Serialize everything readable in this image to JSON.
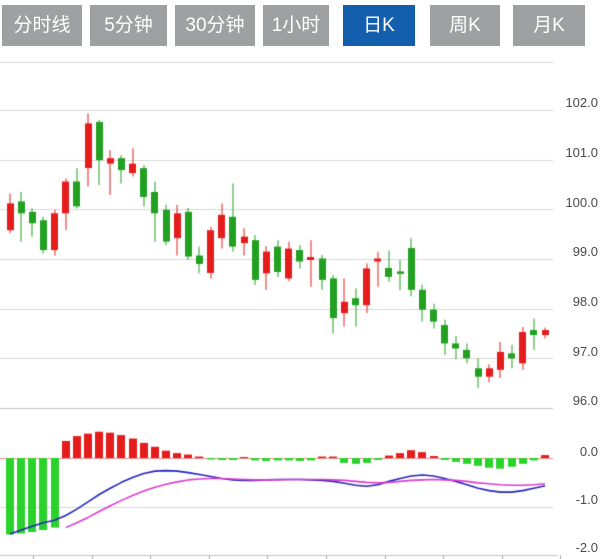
{
  "tabs": [
    {
      "label": "分时线",
      "active": false
    },
    {
      "label": "5分钟",
      "active": false
    },
    {
      "label": "30分钟",
      "active": false
    },
    {
      "label": "1小时",
      "active": false
    },
    {
      "label": "日K",
      "active": true
    },
    {
      "label": "周K",
      "active": false
    },
    {
      "label": "月K",
      "active": false
    }
  ],
  "colors": {
    "up": "#E51C1C",
    "down": "#21A021",
    "macd_up": "#E51C1C",
    "macd_down": "#2BD22B",
    "dif_line": "#2626BE",
    "dea_line": "#DC3CD0",
    "zero_line": "#E89090",
    "grid": "#D9D9D9",
    "grid_dark": "#C4C4C4",
    "axis_text": "#4a4a4a",
    "tab_bg": "#9EA0A2",
    "tab_active_bg": "#145FAD",
    "tab_text": "#FFFFFF"
  },
  "chart_data": [
    {
      "type": "candlestick",
      "timeframe_selected": "日K",
      "convention": "red=up green=down",
      "y_axis": {
        "position": "right",
        "min": 96.0,
        "max": 102.0,
        "labels": [
          "102.0",
          "101.0",
          "100.0",
          "99.0",
          "98.0",
          "97.0",
          "96.0"
        ]
      },
      "x_axis": {
        "labels": [],
        "tick_count": 10
      },
      "grid": true,
      "candles_ohlc": [
        [
          99.58,
          100.32,
          99.52,
          100.12
        ],
        [
          100.16,
          100.35,
          99.35,
          99.92
        ],
        [
          99.95,
          100.02,
          99.45,
          99.72
        ],
        [
          99.78,
          99.85,
          99.11,
          99.18
        ],
        [
          99.18,
          99.99,
          99.07,
          99.92
        ],
        [
          99.92,
          100.62,
          99.58,
          100.56
        ],
        [
          100.56,
          100.83,
          100.02,
          100.06
        ],
        [
          100.83,
          101.93,
          100.46,
          101.73
        ],
        [
          101.76,
          101.8,
          100.49,
          100.99
        ],
        [
          100.92,
          101.19,
          100.29,
          101.03
        ],
        [
          101.03,
          101.09,
          100.52,
          100.79
        ],
        [
          100.73,
          101.23,
          100.66,
          100.92
        ],
        [
          100.83,
          100.89,
          100.06,
          100.25
        ],
        [
          100.35,
          100.56,
          99.35,
          99.92
        ],
        [
          99.99,
          100.09,
          99.28,
          99.35
        ],
        [
          99.42,
          100.09,
          99.07,
          99.92
        ],
        [
          99.95,
          100.03,
          98.98,
          99.05
        ],
        [
          99.07,
          99.25,
          98.71,
          98.9
        ],
        [
          98.72,
          99.65,
          98.61,
          99.58
        ],
        [
          99.42,
          100.12,
          99.21,
          99.89
        ],
        [
          99.85,
          100.52,
          99.15,
          99.25
        ],
        [
          99.32,
          99.62,
          99.07,
          99.45
        ],
        [
          99.38,
          99.48,
          98.48,
          98.58
        ],
        [
          98.71,
          99.26,
          98.38,
          99.15
        ],
        [
          99.25,
          99.38,
          98.64,
          98.74
        ],
        [
          98.61,
          99.35,
          98.55,
          99.21
        ],
        [
          99.18,
          99.28,
          98.81,
          98.95
        ],
        [
          98.98,
          99.38,
          98.44,
          99.04
        ],
        [
          99.01,
          99.08,
          98.38,
          98.58
        ],
        [
          98.61,
          98.68,
          97.5,
          97.81
        ],
        [
          97.91,
          98.61,
          97.64,
          98.14
        ],
        [
          98.21,
          98.41,
          97.64,
          98.07
        ],
        [
          98.07,
          98.91,
          97.91,
          98.81
        ],
        [
          98.95,
          99.14,
          98.44,
          99.01
        ],
        [
          98.82,
          99.17,
          98.54,
          98.64
        ],
        [
          98.75,
          98.98,
          98.37,
          98.7
        ],
        [
          99.22,
          99.42,
          98.25,
          98.38
        ],
        [
          98.38,
          98.48,
          97.74,
          97.98
        ],
        [
          97.98,
          98.1,
          97.6,
          97.74
        ],
        [
          97.67,
          97.78,
          97.07,
          97.3
        ],
        [
          97.3,
          97.45,
          96.98,
          97.2
        ],
        [
          97.17,
          97.3,
          96.9,
          97.0
        ],
        [
          96.8,
          97.0,
          96.4,
          96.63
        ],
        [
          96.63,
          96.88,
          96.52,
          96.8
        ],
        [
          96.77,
          97.33,
          96.6,
          97.13
        ],
        [
          97.1,
          97.27,
          96.8,
          97.0
        ],
        [
          96.9,
          97.63,
          96.77,
          97.53
        ],
        [
          97.57,
          97.8,
          97.17,
          97.47
        ],
        [
          97.47,
          97.62,
          97.4,
          97.57
        ]
      ]
    },
    {
      "type": "macd",
      "y_axis": {
        "position": "right",
        "min": -2.0,
        "max": 0.6,
        "labels": [
          "0.0",
          "-1.0",
          "-2.0"
        ]
      },
      "histogram": [
        -1.57,
        -1.55,
        -1.52,
        -1.48,
        -1.43,
        0.35,
        0.45,
        0.5,
        0.54,
        0.52,
        0.47,
        0.4,
        0.31,
        0.23,
        0.15,
        0.1,
        0.07,
        0.03,
        -0.03,
        -0.04,
        -0.04,
        0.02,
        -0.05,
        -0.06,
        -0.05,
        -0.05,
        -0.06,
        -0.05,
        0.03,
        0.03,
        -0.1,
        -0.12,
        -0.1,
        -0.04,
        0.05,
        0.1,
        0.16,
        0.12,
        0.04,
        -0.04,
        -0.08,
        -0.12,
        -0.16,
        -0.2,
        -0.22,
        -0.18,
        -0.12,
        -0.05,
        0.06
      ],
      "dif": [
        -1.56,
        -1.48,
        -1.4,
        -1.33,
        -1.28,
        -1.18,
        -1.05,
        -0.9,
        -0.75,
        -0.62,
        -0.5,
        -0.4,
        -0.32,
        -0.27,
        -0.26,
        -0.27,
        -0.3,
        -0.34,
        -0.38,
        -0.42,
        -0.45,
        -0.46,
        -0.46,
        -0.45,
        -0.44,
        -0.44,
        -0.44,
        -0.45,
        -0.46,
        -0.48,
        -0.52,
        -0.56,
        -0.58,
        -0.55,
        -0.48,
        -0.42,
        -0.37,
        -0.35,
        -0.37,
        -0.42,
        -0.48,
        -0.55,
        -0.62,
        -0.67,
        -0.7,
        -0.7,
        -0.67,
        -0.62,
        -0.57
      ],
      "dea": [
        null,
        null,
        null,
        null,
        null,
        -1.43,
        -1.33,
        -1.22,
        -1.1,
        -0.98,
        -0.87,
        -0.77,
        -0.68,
        -0.6,
        -0.54,
        -0.49,
        -0.45,
        -0.43,
        -0.42,
        -0.42,
        -0.43,
        -0.44,
        -0.45,
        -0.45,
        -0.45,
        -0.44,
        -0.44,
        -0.44,
        -0.44,
        -0.45,
        -0.46,
        -0.48,
        -0.5,
        -0.51,
        -0.5,
        -0.48,
        -0.46,
        -0.45,
        -0.44,
        -0.45,
        -0.46,
        -0.48,
        -0.51,
        -0.53,
        -0.55,
        -0.56,
        -0.56,
        -0.55,
        -0.53
      ]
    }
  ]
}
